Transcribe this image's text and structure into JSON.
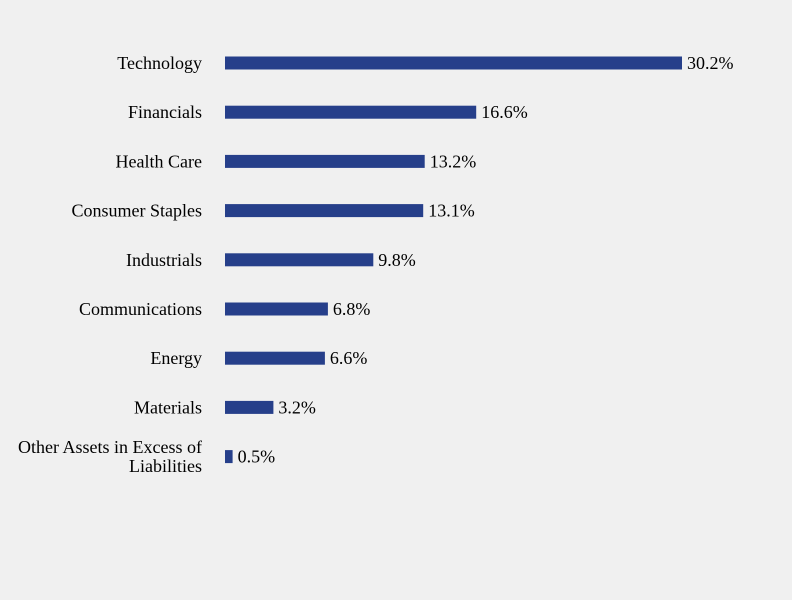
{
  "chart_data": {
    "type": "bar",
    "orientation": "horizontal",
    "categories": [
      "Technology",
      "Financials",
      "Health Care",
      "Consumer Staples",
      "Industrials",
      "Communications",
      "Energy",
      "Materials",
      "Other Assets in Excess of Liabilities"
    ],
    "values": [
      30.2,
      16.6,
      13.2,
      13.1,
      9.8,
      6.8,
      6.6,
      3.2,
      0.5
    ],
    "value_labels": [
      "30.2%",
      "16.6%",
      "13.2%",
      "13.1%",
      "9.8%",
      "6.8%",
      "6.6%",
      "3.2%",
      "0.5%"
    ],
    "unit": "%",
    "xlim": [
      0,
      30.2
    ],
    "grid": false,
    "legend": "none",
    "bar_color": "#263f8a"
  },
  "colors": {
    "background": "#f0f0f0",
    "bar": "#263f8a",
    "text": "#000000"
  }
}
